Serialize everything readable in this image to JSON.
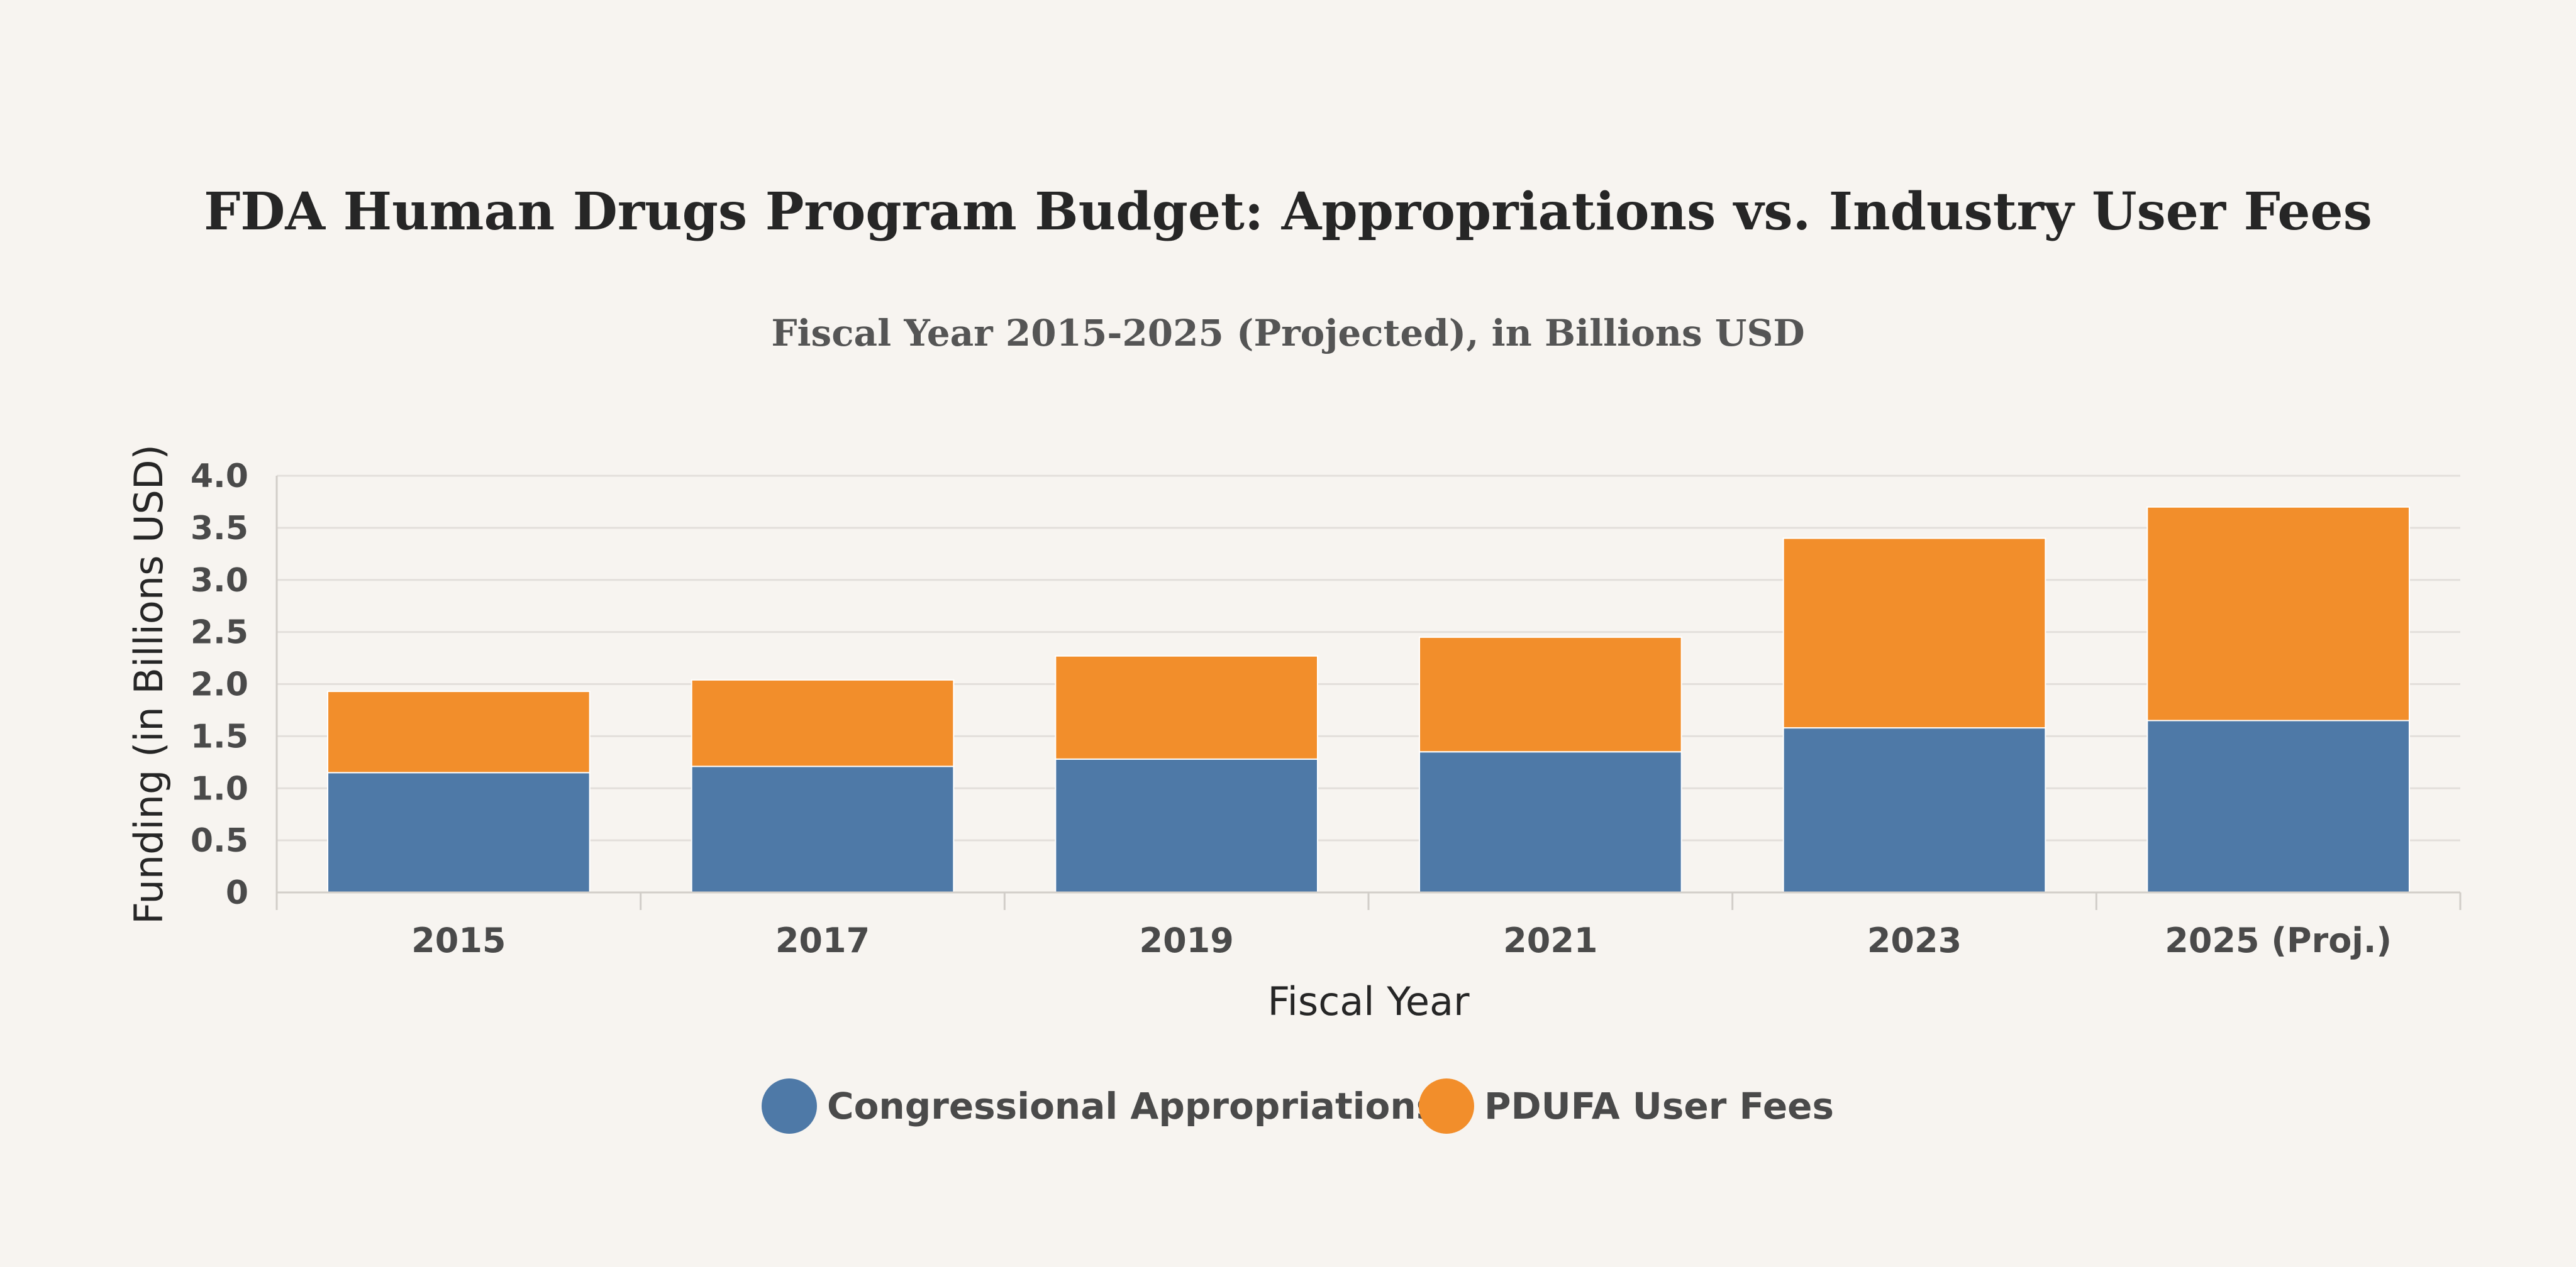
{
  "chart_data": {
    "type": "bar",
    "stacked": true,
    "title": "FDA Human Drugs Program Budget: Appropriations vs. Industry User Fees",
    "subtitle": "Fiscal Year 2015-2025 (Projected), in Billions USD",
    "xlabel": "Fiscal Year",
    "ylabel": "Funding (in Billions USD)",
    "categories": [
      "2015",
      "2017",
      "2019",
      "2021",
      "2023",
      "2025 (Proj.)"
    ],
    "ylim": [
      0,
      4.0
    ],
    "yticks": [
      "0",
      "0.5",
      "1.0",
      "1.5",
      "2.0",
      "2.5",
      "3.0",
      "3.5",
      "4.0"
    ],
    "ytick_values": [
      0,
      0.5,
      1.0,
      1.5,
      2.0,
      2.5,
      3.0,
      3.5,
      4.0
    ],
    "grid": true,
    "legend_position": "bottom-center",
    "series": [
      {
        "name": "Congressional Appropriations",
        "color": "#4e79a7",
        "values": [
          1.15,
          1.21,
          1.28,
          1.35,
          1.58,
          1.65
        ]
      },
      {
        "name": "PDUFA User Fees",
        "color": "#f28e2b",
        "values": [
          0.78,
          0.83,
          0.99,
          1.1,
          1.82,
          2.05
        ]
      }
    ]
  }
}
